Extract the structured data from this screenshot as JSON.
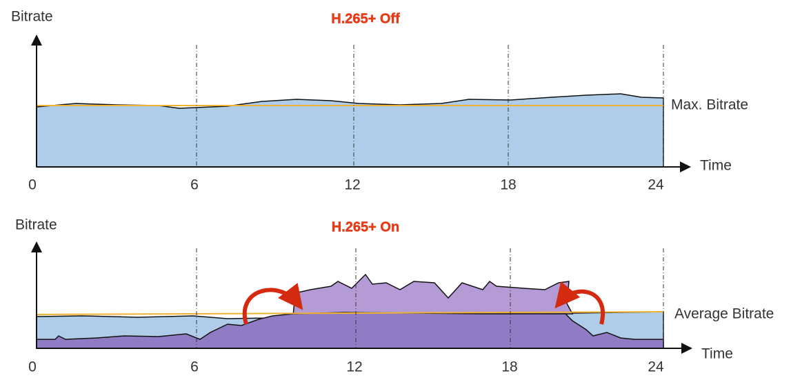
{
  "panels": [
    {
      "title": "H.265+ Off",
      "y_label": "Bitrate",
      "x_label": "Time",
      "x_ticks": [
        0,
        6,
        12,
        18,
        24
      ],
      "line_label": "Max. Bitrate"
    },
    {
      "title": "H.265+ On",
      "y_label": "Bitrate",
      "x_label": "Time",
      "x_ticks": [
        0,
        6,
        12,
        18,
        24
      ],
      "line_label": "Average Bitrate"
    }
  ]
}
